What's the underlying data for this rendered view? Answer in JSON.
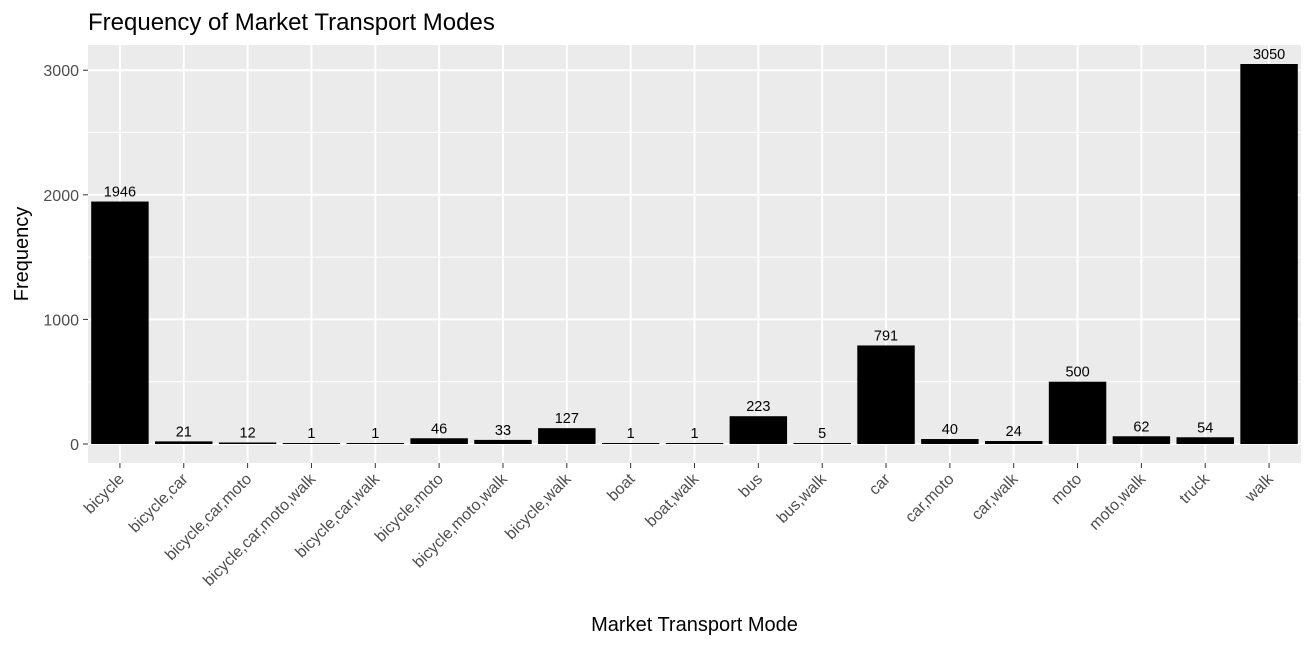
{
  "chart_data": {
    "type": "bar",
    "title": "Frequency of Market Transport Modes",
    "xlabel": "Market Transport Mode",
    "ylabel": "Frequency",
    "categories": [
      "bicycle",
      "bicycle,car",
      "bicycle,car,moto",
      "bicycle,car,moto,walk",
      "bicycle,car,walk",
      "bicycle,moto",
      "bicycle,moto,walk",
      "bicycle,walk",
      "boat",
      "boat,walk",
      "bus",
      "bus,walk",
      "car",
      "car,moto",
      "car,walk",
      "moto",
      "moto,walk",
      "truck",
      "walk"
    ],
    "values": [
      1946,
      21,
      12,
      1,
      1,
      46,
      33,
      127,
      1,
      1,
      223,
      5,
      791,
      40,
      24,
      500,
      62,
      54,
      3050
    ],
    "data_labels": [
      "1946",
      "21",
      "12",
      "1",
      "1",
      "46",
      "33",
      "127",
      "1",
      "1",
      "223",
      "5",
      "791",
      "40",
      "24",
      "500",
      "62",
      "54",
      "3050"
    ],
    "ylim": [
      -152.5,
      3202.5
    ],
    "y_ticks": [
      0,
      1000,
      2000,
      3000
    ],
    "y_tick_labels": [
      "0",
      "1000",
      "2000",
      "3000"
    ],
    "grid": true,
    "legend": "none",
    "colors": {
      "bar": "#000000",
      "panel_background": "#ebebeb",
      "grid_line": "#ffffff",
      "tick_text": "#4d4d4d",
      "tick_mark": "#333333"
    }
  }
}
